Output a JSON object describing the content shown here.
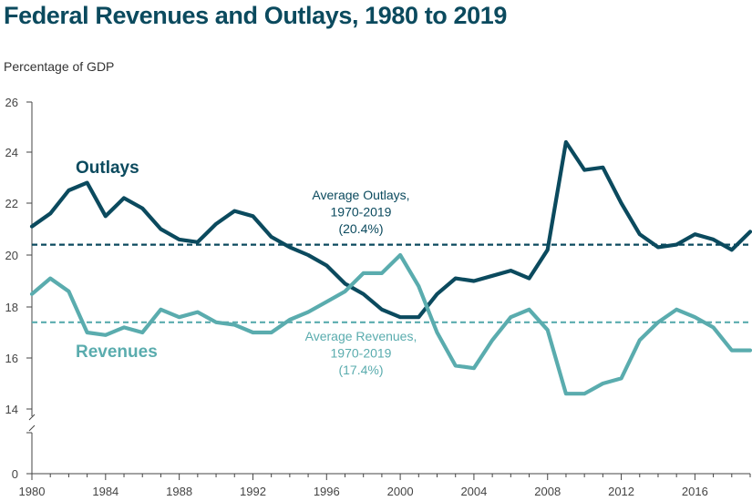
{
  "chart_data": {
    "type": "line",
    "title": "Federal Revenues and Outlays, 1980 to 2019",
    "ylabel": "Percentage of GDP",
    "xlabel": "",
    "xlim": [
      1980,
      2019
    ],
    "ylim": [
      0,
      26
    ],
    "axis_break": [
      12,
      14
    ],
    "yticks": [
      0,
      14,
      16,
      18,
      20,
      22,
      24,
      26
    ],
    "xticks": [
      1980,
      1984,
      1988,
      1992,
      1996,
      2000,
      2004,
      2008,
      2012,
      2016
    ],
    "x": [
      1980,
      1981,
      1982,
      1983,
      1984,
      1985,
      1986,
      1987,
      1988,
      1989,
      1990,
      1991,
      1992,
      1993,
      1994,
      1995,
      1996,
      1997,
      1998,
      1999,
      2000,
      2001,
      2002,
      2003,
      2004,
      2005,
      2006,
      2007,
      2008,
      2009,
      2010,
      2011,
      2012,
      2013,
      2014,
      2015,
      2016,
      2017,
      2018,
      2019
    ],
    "series": [
      {
        "name": "Outlays",
        "label": "Outlays",
        "color": "#0b4a5e",
        "values": [
          21.1,
          21.6,
          22.5,
          22.8,
          21.5,
          22.2,
          21.8,
          21.0,
          20.6,
          20.5,
          21.2,
          21.7,
          21.5,
          20.7,
          20.3,
          20.0,
          19.6,
          18.9,
          18.5,
          17.9,
          17.6,
          17.6,
          18.5,
          19.1,
          19.0,
          19.2,
          19.4,
          19.1,
          20.2,
          24.4,
          23.3,
          23.4,
          22.0,
          20.8,
          20.3,
          20.4,
          20.8,
          20.6,
          20.2,
          20.9
        ]
      },
      {
        "name": "Revenues",
        "label": "Revenues",
        "color": "#5aacae",
        "values": [
          18.5,
          19.1,
          18.6,
          17.0,
          16.9,
          17.2,
          17.0,
          17.9,
          17.6,
          17.8,
          17.4,
          17.3,
          17.0,
          17.0,
          17.5,
          17.8,
          18.2,
          18.6,
          19.3,
          19.3,
          20.0,
          18.8,
          17.0,
          15.7,
          15.6,
          16.7,
          17.6,
          17.9,
          17.1,
          14.6,
          14.6,
          15.0,
          15.2,
          16.7,
          17.4,
          17.9,
          17.6,
          17.2,
          16.3,
          16.3
        ]
      }
    ],
    "reference_lines": [
      {
        "name": "Average Outlays",
        "value": 20.4,
        "color": "#0b4a5e",
        "label_lines": [
          "Average Outlays,",
          "1970-2019",
          "(20.4%)"
        ]
      },
      {
        "name": "Average Revenues",
        "value": 17.4,
        "color": "#5aacae",
        "label_lines": [
          "Average Revenues,",
          "1970-2019",
          "(17.4%)"
        ]
      }
    ]
  },
  "colors": {
    "title": "#0b4a5e",
    "axis": "#444444"
  }
}
